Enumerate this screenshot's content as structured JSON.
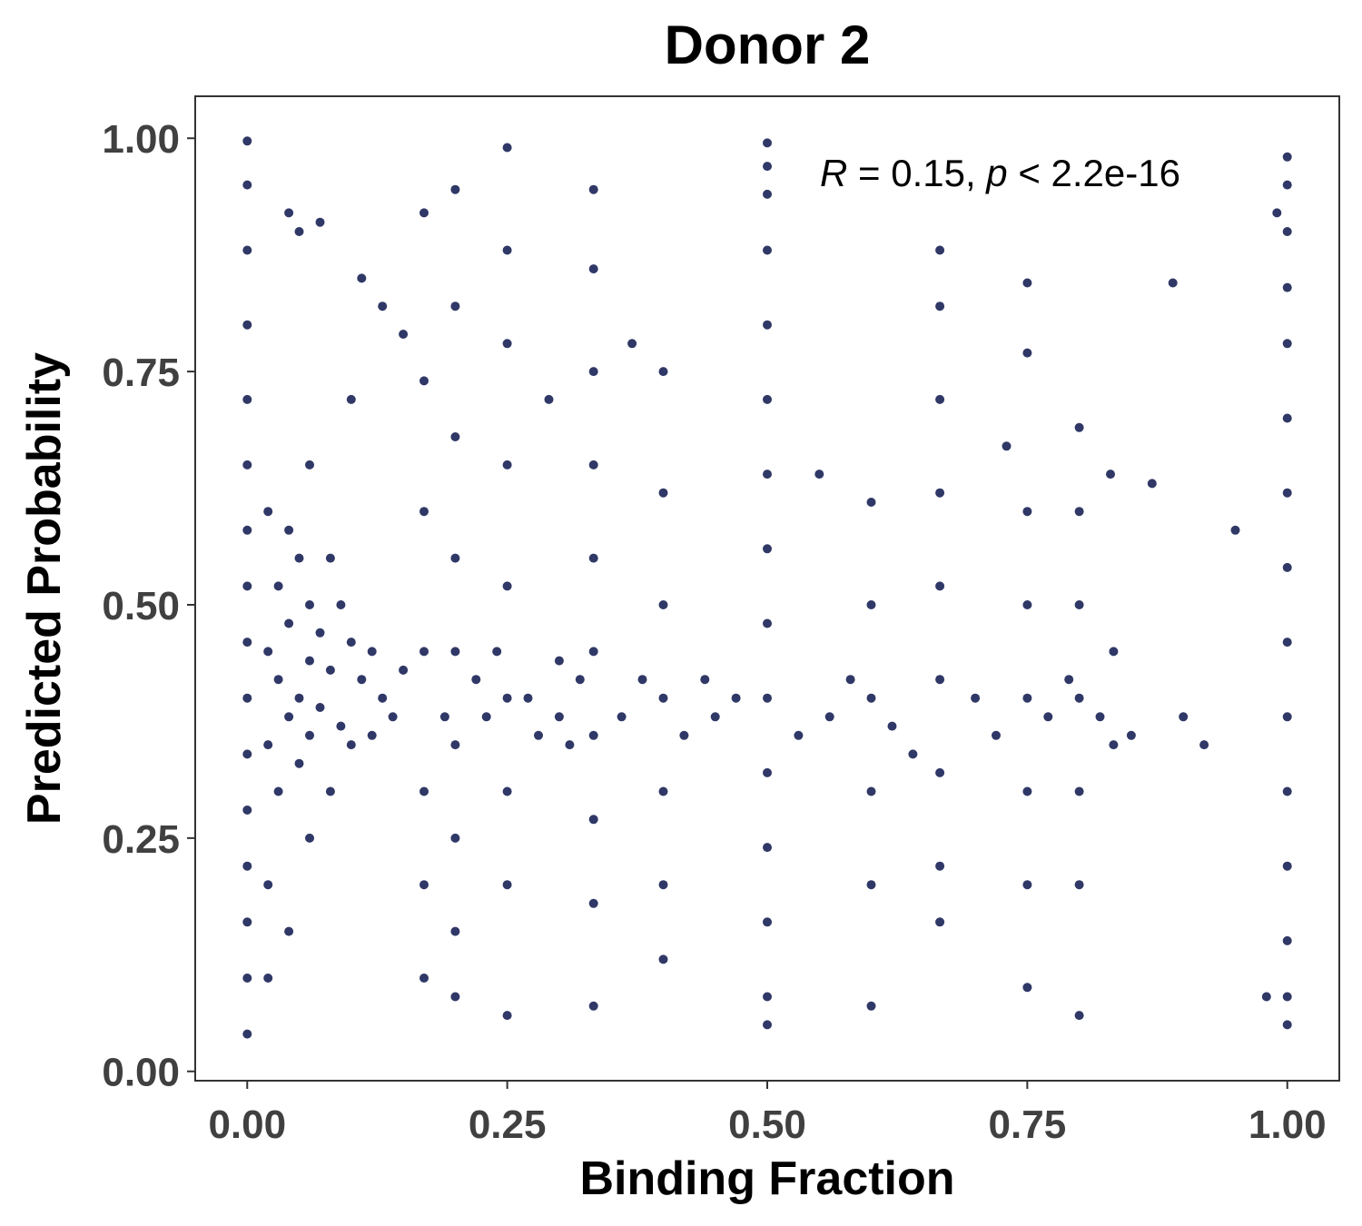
{
  "chart_data": {
    "type": "scatter",
    "title": "Donor 2",
    "xlabel": "Binding Fraction",
    "ylabel": "Predicted Probability",
    "xlim": [
      -0.05,
      1.05
    ],
    "ylim": [
      -0.01,
      1.045
    ],
    "x_ticks": [
      0.0,
      0.25,
      0.5,
      0.75,
      1.0
    ],
    "x_tick_labels": [
      "0.00",
      "0.25",
      "0.50",
      "0.75",
      "1.00"
    ],
    "y_ticks": [
      0.0,
      0.25,
      0.5,
      0.75,
      1.0
    ],
    "y_tick_labels": [
      "0.00",
      "0.25",
      "0.50",
      "0.75",
      "1.00"
    ],
    "grid": false,
    "point_color": "#2f3866",
    "annotation": {
      "r_symbol": "R",
      "r_value": " = 0.15, ",
      "p_symbol": "p",
      "p_value": " < 2.2e-16"
    },
    "points": [
      [
        0.0,
        0.997
      ],
      [
        0.0,
        0.95
      ],
      [
        0.0,
        0.88
      ],
      [
        0.0,
        0.8
      ],
      [
        0.0,
        0.72
      ],
      [
        0.0,
        0.65
      ],
      [
        0.0,
        0.58
      ],
      [
        0.0,
        0.52
      ],
      [
        0.0,
        0.46
      ],
      [
        0.0,
        0.4
      ],
      [
        0.0,
        0.34
      ],
      [
        0.0,
        0.28
      ],
      [
        0.0,
        0.22
      ],
      [
        0.0,
        0.16
      ],
      [
        0.0,
        0.1
      ],
      [
        0.0,
        0.04
      ],
      [
        0.02,
        0.6
      ],
      [
        0.02,
        0.45
      ],
      [
        0.02,
        0.35
      ],
      [
        0.02,
        0.2
      ],
      [
        0.02,
        0.1
      ],
      [
        0.03,
        0.52
      ],
      [
        0.03,
        0.42
      ],
      [
        0.03,
        0.3
      ],
      [
        0.04,
        0.58
      ],
      [
        0.04,
        0.48
      ],
      [
        0.04,
        0.38
      ],
      [
        0.04,
        0.15
      ],
      [
        0.04,
        0.92
      ],
      [
        0.05,
        0.9
      ],
      [
        0.05,
        0.55
      ],
      [
        0.05,
        0.4
      ],
      [
        0.05,
        0.33
      ],
      [
        0.06,
        0.5
      ],
      [
        0.06,
        0.44
      ],
      [
        0.06,
        0.36
      ],
      [
        0.06,
        0.25
      ],
      [
        0.06,
        0.65
      ],
      [
        0.07,
        0.47
      ],
      [
        0.07,
        0.39
      ],
      [
        0.07,
        0.91
      ],
      [
        0.08,
        0.55
      ],
      [
        0.08,
        0.43
      ],
      [
        0.08,
        0.3
      ],
      [
        0.09,
        0.5
      ],
      [
        0.09,
        0.37
      ],
      [
        0.1,
        0.46
      ],
      [
        0.1,
        0.35
      ],
      [
        0.1,
        0.72
      ],
      [
        0.11,
        0.42
      ],
      [
        0.11,
        0.85
      ],
      [
        0.12,
        0.45
      ],
      [
        0.12,
        0.36
      ],
      [
        0.13,
        0.4
      ],
      [
        0.13,
        0.82
      ],
      [
        0.14,
        0.38
      ],
      [
        0.15,
        0.43
      ],
      [
        0.15,
        0.79
      ],
      [
        0.17,
        0.92
      ],
      [
        0.17,
        0.74
      ],
      [
        0.17,
        0.6
      ],
      [
        0.17,
        0.45
      ],
      [
        0.17,
        0.3
      ],
      [
        0.17,
        0.2
      ],
      [
        0.17,
        0.1
      ],
      [
        0.19,
        0.38
      ],
      [
        0.2,
        0.945
      ],
      [
        0.2,
        0.82
      ],
      [
        0.2,
        0.68
      ],
      [
        0.2,
        0.55
      ],
      [
        0.2,
        0.45
      ],
      [
        0.2,
        0.35
      ],
      [
        0.2,
        0.25
      ],
      [
        0.2,
        0.15
      ],
      [
        0.2,
        0.08
      ],
      [
        0.22,
        0.42
      ],
      [
        0.23,
        0.38
      ],
      [
        0.24,
        0.45
      ],
      [
        0.25,
        0.99
      ],
      [
        0.25,
        0.88
      ],
      [
        0.25,
        0.78
      ],
      [
        0.25,
        0.65
      ],
      [
        0.25,
        0.52
      ],
      [
        0.25,
        0.4
      ],
      [
        0.25,
        0.3
      ],
      [
        0.25,
        0.2
      ],
      [
        0.25,
        0.06
      ],
      [
        0.27,
        0.4
      ],
      [
        0.28,
        0.36
      ],
      [
        0.29,
        0.72
      ],
      [
        0.3,
        0.44
      ],
      [
        0.3,
        0.38
      ],
      [
        0.31,
        0.35
      ],
      [
        0.32,
        0.42
      ],
      [
        0.333,
        0.945
      ],
      [
        0.333,
        0.86
      ],
      [
        0.333,
        0.75
      ],
      [
        0.333,
        0.65
      ],
      [
        0.333,
        0.55
      ],
      [
        0.333,
        0.45
      ],
      [
        0.333,
        0.36
      ],
      [
        0.333,
        0.27
      ],
      [
        0.333,
        0.18
      ],
      [
        0.333,
        0.07
      ],
      [
        0.36,
        0.38
      ],
      [
        0.37,
        0.78
      ],
      [
        0.38,
        0.42
      ],
      [
        0.4,
        0.75
      ],
      [
        0.4,
        0.62
      ],
      [
        0.4,
        0.5
      ],
      [
        0.4,
        0.4
      ],
      [
        0.4,
        0.3
      ],
      [
        0.4,
        0.2
      ],
      [
        0.4,
        0.12
      ],
      [
        0.42,
        0.36
      ],
      [
        0.44,
        0.42
      ],
      [
        0.45,
        0.38
      ],
      [
        0.47,
        0.4
      ],
      [
        0.5,
        0.995
      ],
      [
        0.5,
        0.97
      ],
      [
        0.5,
        0.94
      ],
      [
        0.5,
        0.88
      ],
      [
        0.5,
        0.8
      ],
      [
        0.5,
        0.72
      ],
      [
        0.5,
        0.64
      ],
      [
        0.5,
        0.56
      ],
      [
        0.5,
        0.48
      ],
      [
        0.5,
        0.4
      ],
      [
        0.5,
        0.32
      ],
      [
        0.5,
        0.24
      ],
      [
        0.5,
        0.16
      ],
      [
        0.5,
        0.08
      ],
      [
        0.5,
        0.05
      ],
      [
        0.53,
        0.36
      ],
      [
        0.55,
        0.64
      ],
      [
        0.56,
        0.38
      ],
      [
        0.58,
        0.42
      ],
      [
        0.6,
        0.61
      ],
      [
        0.6,
        0.5
      ],
      [
        0.6,
        0.4
      ],
      [
        0.6,
        0.3
      ],
      [
        0.6,
        0.2
      ],
      [
        0.6,
        0.07
      ],
      [
        0.62,
        0.37
      ],
      [
        0.64,
        0.34
      ],
      [
        0.666,
        0.88
      ],
      [
        0.666,
        0.82
      ],
      [
        0.666,
        0.72
      ],
      [
        0.666,
        0.62
      ],
      [
        0.666,
        0.52
      ],
      [
        0.666,
        0.42
      ],
      [
        0.666,
        0.32
      ],
      [
        0.666,
        0.22
      ],
      [
        0.666,
        0.16
      ],
      [
        0.7,
        0.4
      ],
      [
        0.72,
        0.36
      ],
      [
        0.73,
        0.67
      ],
      [
        0.75,
        0.845
      ],
      [
        0.75,
        0.77
      ],
      [
        0.75,
        0.6
      ],
      [
        0.75,
        0.5
      ],
      [
        0.75,
        0.4
      ],
      [
        0.75,
        0.3
      ],
      [
        0.75,
        0.2
      ],
      [
        0.75,
        0.09
      ],
      [
        0.77,
        0.38
      ],
      [
        0.79,
        0.42
      ],
      [
        0.8,
        0.69
      ],
      [
        0.8,
        0.6
      ],
      [
        0.8,
        0.5
      ],
      [
        0.8,
        0.4
      ],
      [
        0.8,
        0.3
      ],
      [
        0.8,
        0.2
      ],
      [
        0.8,
        0.06
      ],
      [
        0.82,
        0.38
      ],
      [
        0.83,
        0.64
      ],
      [
        0.833,
        0.45
      ],
      [
        0.833,
        0.35
      ],
      [
        0.85,
        0.36
      ],
      [
        0.87,
        0.63
      ],
      [
        0.89,
        0.845
      ],
      [
        0.9,
        0.38
      ],
      [
        0.92,
        0.35
      ],
      [
        0.95,
        0.58
      ],
      [
        1.0,
        0.98
      ],
      [
        1.0,
        0.95
      ],
      [
        1.0,
        0.9
      ],
      [
        1.0,
        0.84
      ],
      [
        1.0,
        0.78
      ],
      [
        1.0,
        0.7
      ],
      [
        1.0,
        0.62
      ],
      [
        1.0,
        0.54
      ],
      [
        1.0,
        0.46
      ],
      [
        1.0,
        0.38
      ],
      [
        1.0,
        0.3
      ],
      [
        1.0,
        0.22
      ],
      [
        1.0,
        0.14
      ],
      [
        1.0,
        0.08
      ],
      [
        1.0,
        0.05
      ],
      [
        0.99,
        0.92
      ],
      [
        0.98,
        0.08
      ]
    ]
  }
}
